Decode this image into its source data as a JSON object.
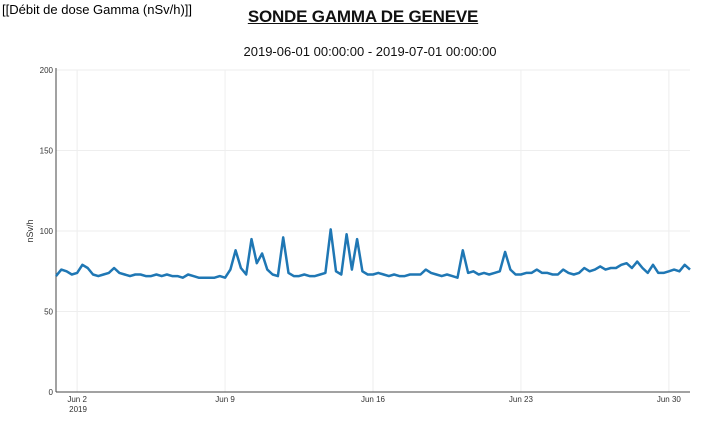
{
  "header": {
    "corner_label": "[[Débit de dose Gamma (nSv/h)]]",
    "title": "SONDE GAMMA DE GENEVE",
    "subtitle": "2019-06-01 00:00:00 - 2019-07-01 00:00:00"
  },
  "colors": {
    "line": "#1f77b4",
    "grid": "#eeeeee",
    "axis": "#444444"
  },
  "chart_data": {
    "type": "line",
    "title": "SONDE GAMMA DE GENEVE",
    "ylabel": "nSv/h",
    "xlabel": "",
    "ylim": [
      0,
      200
    ],
    "xlim": [
      "2019-06-01T00:00",
      "2019-07-01T00:00"
    ],
    "y_ticks": [
      0,
      50,
      100,
      150,
      200
    ],
    "x_ticks": [
      {
        "x": "2019-06-02",
        "label": "Jun 2",
        "sublabel": "2019"
      },
      {
        "x": "2019-06-09",
        "label": "Jun 9",
        "sublabel": ""
      },
      {
        "x": "2019-06-16",
        "label": "Jun 16",
        "sublabel": ""
      },
      {
        "x": "2019-06-23",
        "label": "Jun 23",
        "sublabel": ""
      },
      {
        "x": "2019-06-30",
        "label": "Jun 30",
        "sublabel": ""
      }
    ],
    "grid": true,
    "series": [
      {
        "x": [
          "2019-06-01T00:00",
          "2019-06-01T06:00",
          "2019-06-01T12:00",
          "2019-06-01T18:00",
          "2019-06-02T00:00",
          "2019-06-02T06:00",
          "2019-06-02T12:00",
          "2019-06-02T18:00",
          "2019-06-03T00:00",
          "2019-06-03T06:00",
          "2019-06-03T12:00",
          "2019-06-03T18:00",
          "2019-06-04T00:00",
          "2019-06-04T06:00",
          "2019-06-04T12:00",
          "2019-06-04T18:00",
          "2019-06-05T00:00",
          "2019-06-05T06:00",
          "2019-06-05T12:00",
          "2019-06-05T18:00",
          "2019-06-06T00:00",
          "2019-06-06T06:00",
          "2019-06-06T12:00",
          "2019-06-06T18:00",
          "2019-06-07T00:00",
          "2019-06-07T06:00",
          "2019-06-07T12:00",
          "2019-06-07T18:00",
          "2019-06-08T00:00",
          "2019-06-08T06:00",
          "2019-06-08T12:00",
          "2019-06-08T18:00",
          "2019-06-09T00:00",
          "2019-06-09T06:00",
          "2019-06-09T12:00",
          "2019-06-09T18:00",
          "2019-06-10T00:00",
          "2019-06-10T06:00",
          "2019-06-10T12:00",
          "2019-06-10T18:00",
          "2019-06-11T00:00",
          "2019-06-11T06:00",
          "2019-06-11T12:00",
          "2019-06-11T18:00",
          "2019-06-12T00:00",
          "2019-06-12T06:00",
          "2019-06-12T12:00",
          "2019-06-12T18:00",
          "2019-06-13T00:00",
          "2019-06-13T06:00",
          "2019-06-13T12:00",
          "2019-06-13T18:00",
          "2019-06-14T00:00",
          "2019-06-14T06:00",
          "2019-06-14T12:00",
          "2019-06-14T18:00",
          "2019-06-15T00:00",
          "2019-06-15T06:00",
          "2019-06-15T12:00",
          "2019-06-15T18:00",
          "2019-06-16T00:00",
          "2019-06-16T06:00",
          "2019-06-16T12:00",
          "2019-06-16T18:00",
          "2019-06-17T00:00",
          "2019-06-17T06:00",
          "2019-06-17T12:00",
          "2019-06-17T18:00",
          "2019-06-18T00:00",
          "2019-06-18T06:00",
          "2019-06-18T12:00",
          "2019-06-18T18:00",
          "2019-06-19T00:00",
          "2019-06-19T06:00",
          "2019-06-19T12:00",
          "2019-06-19T18:00",
          "2019-06-20T00:00",
          "2019-06-20T06:00",
          "2019-06-20T12:00",
          "2019-06-20T18:00",
          "2019-06-21T00:00",
          "2019-06-21T06:00",
          "2019-06-21T12:00",
          "2019-06-21T18:00",
          "2019-06-22T00:00",
          "2019-06-22T06:00",
          "2019-06-22T12:00",
          "2019-06-22T18:00",
          "2019-06-23T00:00",
          "2019-06-23T06:00",
          "2019-06-23T12:00",
          "2019-06-23T18:00",
          "2019-06-24T00:00",
          "2019-06-24T06:00",
          "2019-06-24T12:00",
          "2019-06-24T18:00",
          "2019-06-25T00:00",
          "2019-06-25T06:00",
          "2019-06-25T12:00",
          "2019-06-25T18:00",
          "2019-06-26T00:00",
          "2019-06-26T06:00",
          "2019-06-26T12:00",
          "2019-06-26T18:00",
          "2019-06-27T00:00",
          "2019-06-27T06:00",
          "2019-06-27T12:00",
          "2019-06-27T18:00",
          "2019-06-28T00:00",
          "2019-06-28T06:00",
          "2019-06-28T12:00",
          "2019-06-28T18:00",
          "2019-06-29T00:00",
          "2019-06-29T06:00",
          "2019-06-29T12:00",
          "2019-06-29T18:00",
          "2019-06-30T00:00",
          "2019-06-30T06:00",
          "2019-06-30T12:00",
          "2019-06-30T18:00",
          "2019-07-01T00:00"
        ],
        "y": [
          72,
          76,
          75,
          73,
          74,
          79,
          77,
          73,
          72,
          73,
          74,
          77,
          74,
          73,
          72,
          73,
          73,
          72,
          72,
          73,
          72,
          73,
          72,
          72,
          71,
          73,
          72,
          71,
          71,
          71,
          71,
          72,
          71,
          76,
          88,
          77,
          73,
          95,
          80,
          86,
          76,
          73,
          72,
          96,
          74,
          72,
          72,
          73,
          72,
          72,
          73,
          74,
          101,
          75,
          73,
          98,
          76,
          95,
          75,
          73,
          73,
          74,
          73,
          72,
          73,
          72,
          72,
          73,
          73,
          73,
          76,
          74,
          73,
          72,
          73,
          72,
          71,
          88,
          74,
          75,
          73,
          74,
          73,
          74,
          75,
          87,
          76,
          73,
          73,
          74,
          74,
          76,
          74,
          74,
          73,
          73,
          76,
          74,
          73,
          74,
          77,
          75,
          76,
          78,
          76,
          77,
          77,
          79,
          80,
          77,
          81,
          77,
          74,
          79,
          74,
          74,
          75,
          76,
          75,
          79,
          76
        ]
      }
    ]
  }
}
